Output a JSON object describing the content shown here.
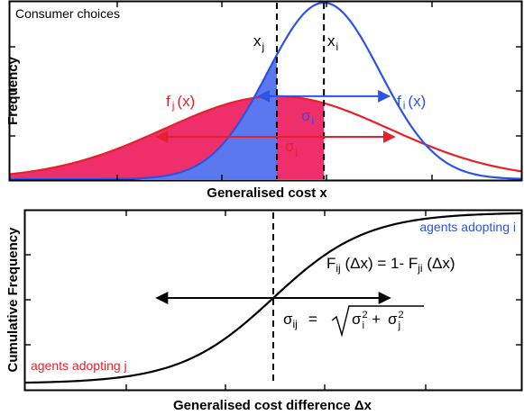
{
  "colors": {
    "red": "#e8202a",
    "blue": "#2b54e6",
    "red_fill": "#ee2f6b",
    "blue_fill": "#5b78ee",
    "black": "#000000"
  },
  "chart_data": [
    {
      "type": "line",
      "panel": "top",
      "title": "Consumer choices",
      "xlabel": "Generalised cost x",
      "ylabel": "Frequency",
      "x_range": [
        0,
        100
      ],
      "y_range": [
        0,
        1.0
      ],
      "grid": false,
      "series": [
        {
          "name": "f_j(x)",
          "label_main": "f",
          "label_sub": "j",
          "label_tail": "(x)",
          "color": "red",
          "distribution": "gaussian",
          "mean": 52.2,
          "sd": 22.0,
          "peak": 0.47
        },
        {
          "name": "f_i(x)",
          "label_main": "f",
          "label_sub": "i",
          "label_tail": "(x)",
          "color": "blue",
          "distribution": "gaussian",
          "mean": 61.4,
          "sd": 11.0,
          "peak": 1.0
        }
      ],
      "markers": [
        {
          "name": "x_j",
          "x": 52.2,
          "label_main": "x",
          "label_sub": "j"
        },
        {
          "name": "x_i",
          "x": 61.4,
          "label_main": "x",
          "label_sub": "i"
        }
      ],
      "annotations": {
        "sigma_i": {
          "label_main": "σ",
          "label_sub": "i",
          "x_from": 48.6,
          "x_to": 74.2,
          "y": 0.47
        },
        "sigma_j": {
          "label_main": "σ",
          "label_sub": "j",
          "x_from": 28.7,
          "x_to": 75.2,
          "y": 0.24
        }
      }
    },
    {
      "type": "line",
      "panel": "bottom",
      "xlabel": "Generalised cost difference Δx",
      "ylabel": "Cumulative Frequency",
      "x_range": [
        -50,
        50
      ],
      "y_range": [
        0,
        1.0
      ],
      "grid": false,
      "series": [
        {
          "name": "F_ij(Δx)",
          "color": "black",
          "distribution": "cumulative-gaussian",
          "mean": 0,
          "sd": 16.0
        }
      ],
      "markers": [
        {
          "name": "center",
          "x": 0
        }
      ],
      "annotations": {
        "adopting_i": "agents adopting i",
        "adopting_j": "agents adopting j",
        "relation": {
          "lhs_main": "F",
          "lhs_sub": "ij",
          "lhs_tail": " (Δx) = 1- ",
          "rhs_main": "F",
          "rhs_sub": "ji",
          "rhs_tail": " (Δx)"
        },
        "sigma_ij": {
          "label_main": "σ",
          "label_sub": "ij",
          "equals": "=",
          "term1_main": "σ",
          "term1_sub": "i",
          "term1_sup": "2",
          "plus": "+",
          "term2_main": "σ",
          "term2_sub": "j",
          "term2_sup": "2",
          "x_from": -23.5,
          "x_to": 23.5,
          "y": 0.5
        }
      }
    }
  ]
}
